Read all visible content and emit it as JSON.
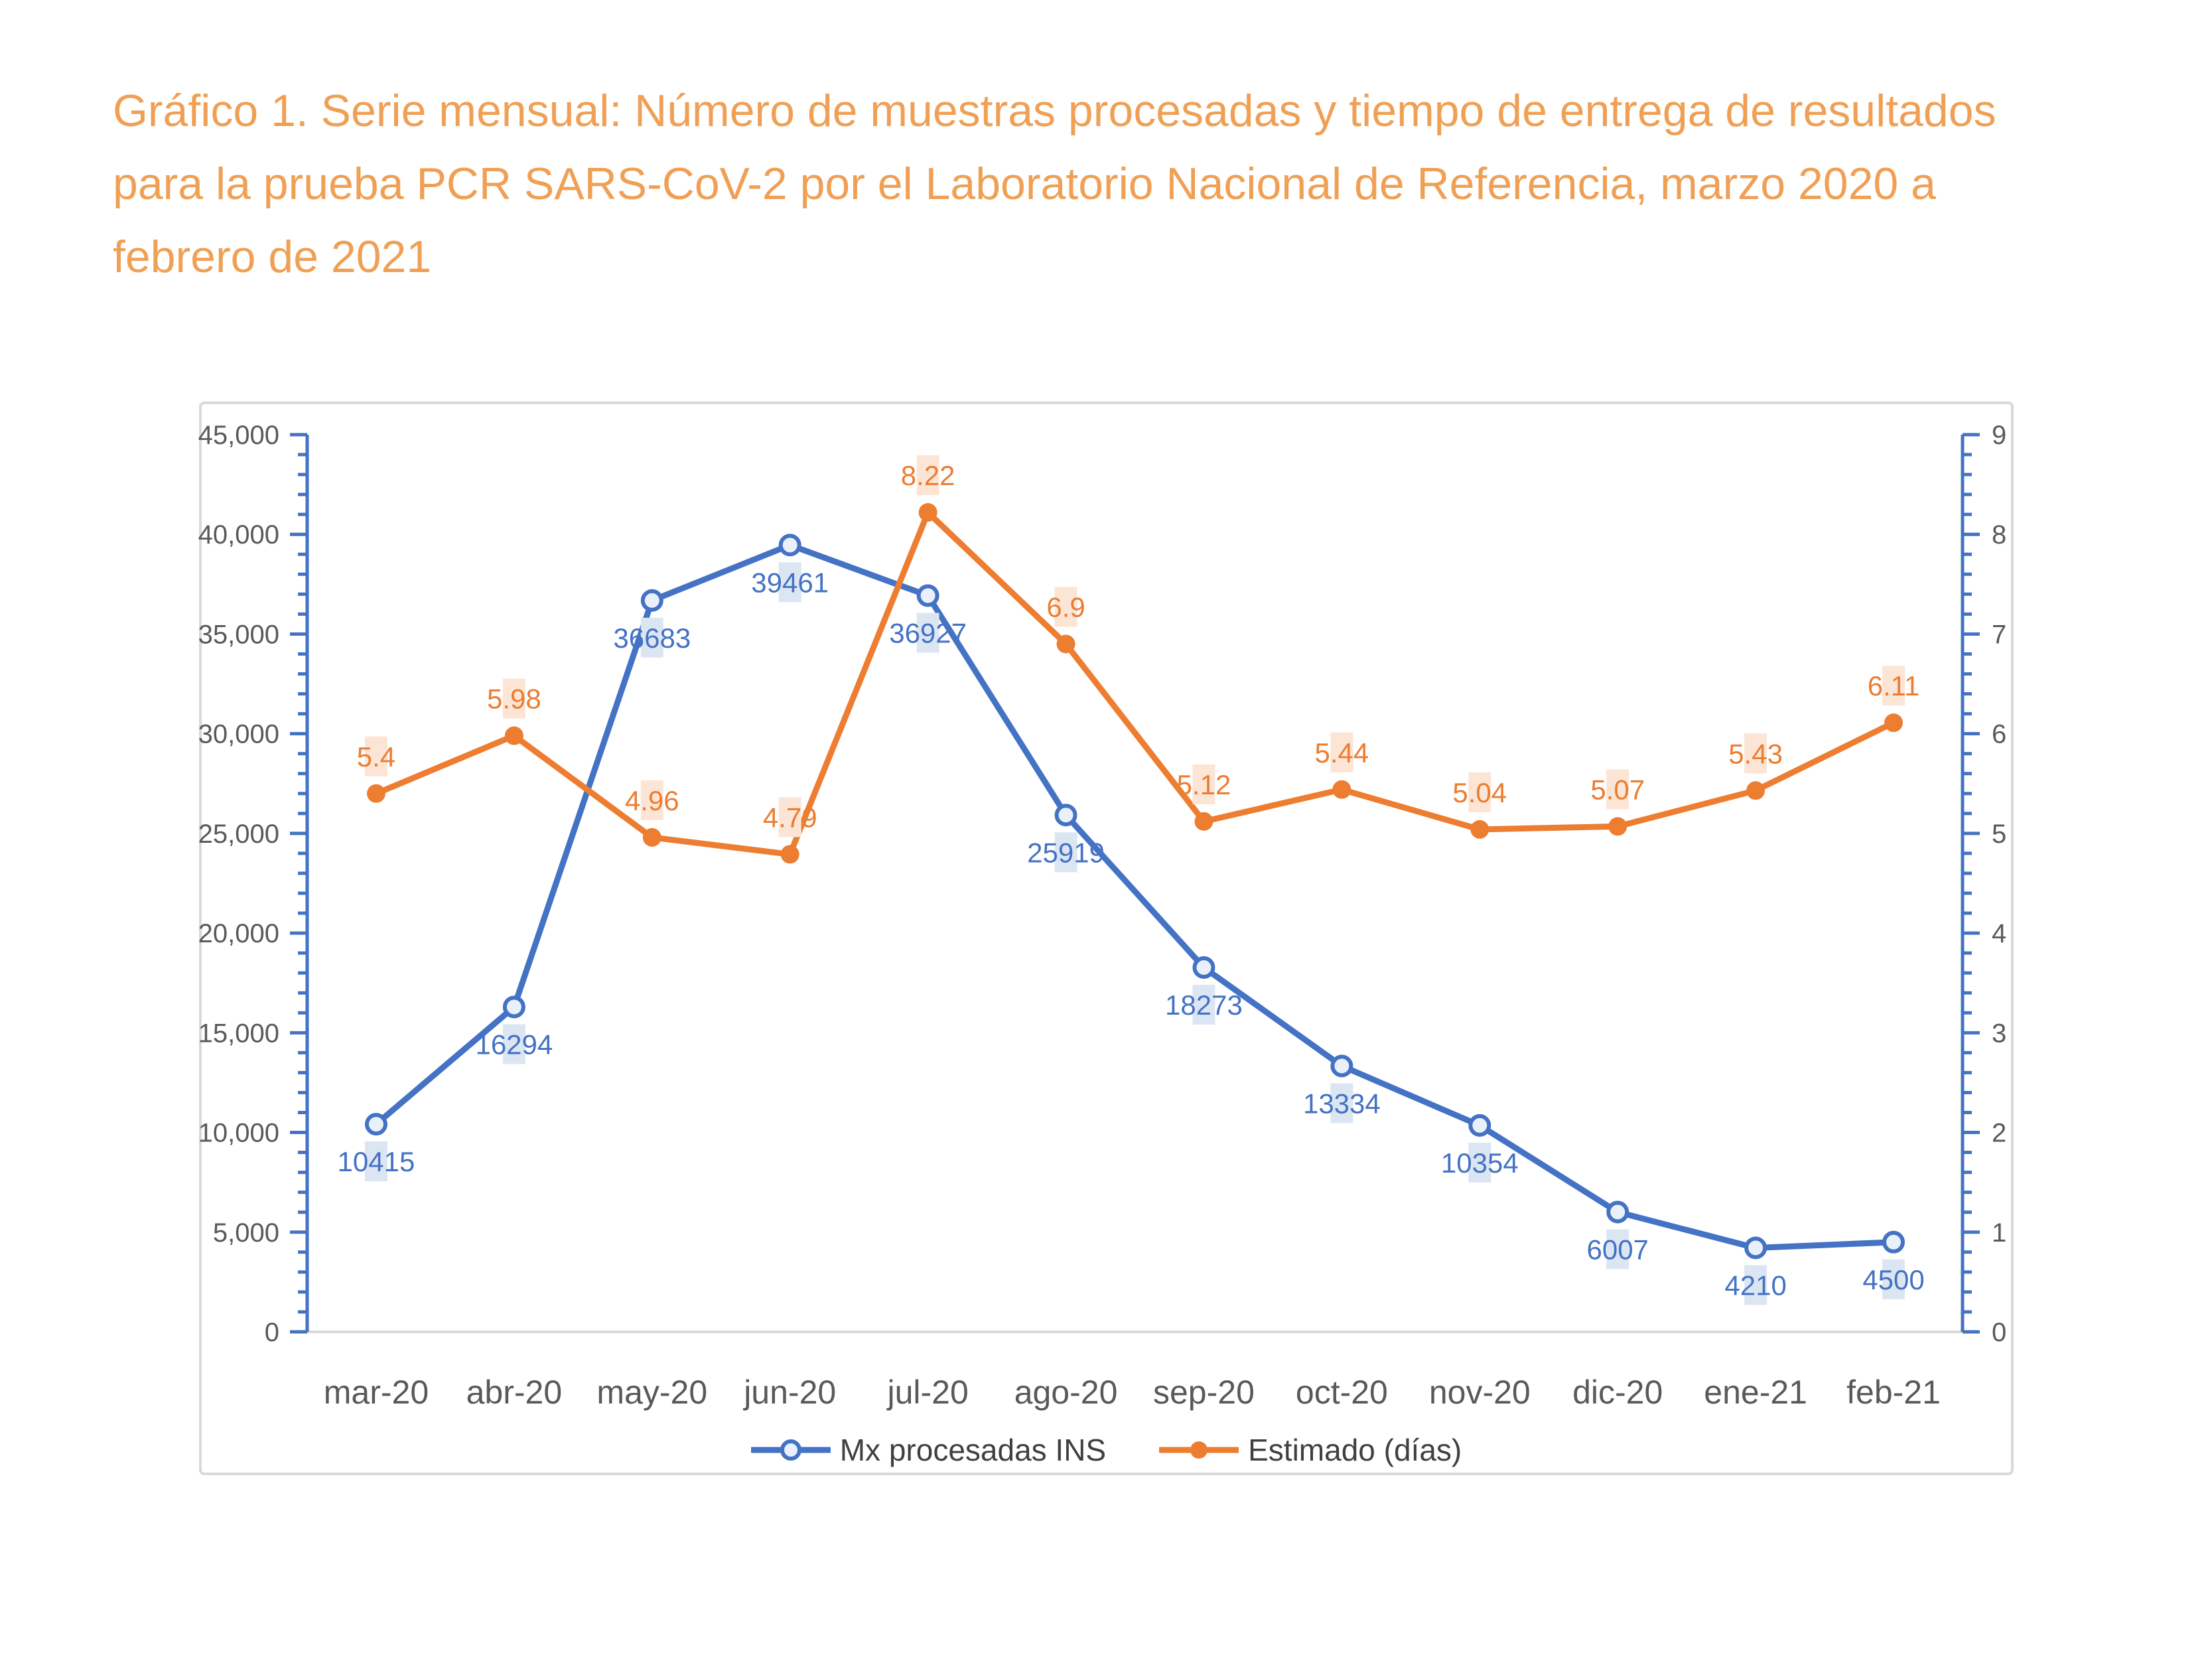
{
  "title": {
    "lines": [
      "Gráfico 1. Serie mensual: Número de muestras procesadas y tiempo de entrega de resultados",
      "para la prueba PCR SARS-CoV-2 por el Laboratorio Nacional de Referencia, marzo 2020 a",
      "febrero de 2021"
    ],
    "color": "#F0A055"
  },
  "chart_data": {
    "type": "line",
    "title": "",
    "categories": [
      "mar-20",
      "abr-20",
      "may-20",
      "jun-20",
      "jul-20",
      "ago-20",
      "sep-20",
      "oct-20",
      "nov-20",
      "dic-20",
      "ene-21",
      "feb-21"
    ],
    "series": [
      {
        "name": "Mx procesadas INS",
        "axis": "left",
        "color": "#4472C4",
        "marker": "open-circle",
        "marker_fill": "#E9F0F9",
        "label_bg": "#DCE6F2",
        "label_color": "#4472C4",
        "label_position": "below",
        "values": [
          10415,
          16294,
          36683,
          39461,
          36927,
          25919,
          18273,
          13334,
          10354,
          6007,
          4210,
          4500
        ]
      },
      {
        "name": "Estimado (días)",
        "axis": "right",
        "color": "#ED7D31",
        "marker": "filled-circle",
        "marker_fill": "#ED7D31",
        "label_bg": "#FCE5D5",
        "label_color": "#ED7D31",
        "label_position": "above",
        "values": [
          5.4,
          5.98,
          4.96,
          4.79,
          8.22,
          6.9,
          5.12,
          5.44,
          5.04,
          5.07,
          5.43,
          6.11
        ]
      }
    ],
    "left_axis": {
      "min": 0,
      "max": 45000,
      "major_step": 5000,
      "minor_step": 1000,
      "tick_labels": [
        "0",
        "5,000",
        "10,000",
        "15,000",
        "20,000",
        "25,000",
        "30,000",
        "35,000",
        "40,000",
        "45,000"
      ]
    },
    "right_axis": {
      "min": 0,
      "max": 9,
      "major_step": 1,
      "minor_step": 0.2,
      "tick_labels": [
        "0",
        "1",
        "2",
        "3",
        "4",
        "5",
        "6",
        "7",
        "8",
        "9"
      ]
    },
    "grid": "off",
    "legend_position": "bottom"
  },
  "legend": {
    "items": [
      {
        "label": "Mx procesadas INS",
        "color": "#4472C4",
        "marker": "open-circle"
      },
      {
        "label": "Estimado (días)",
        "color": "#ED7D31",
        "marker": "filled-circle"
      }
    ]
  },
  "colors": {
    "axis_line": "#4472C4",
    "axis_text": "#595959",
    "category_text": "#595959",
    "baseline": "#D9D9D9",
    "frame": "#D9D9D9"
  }
}
